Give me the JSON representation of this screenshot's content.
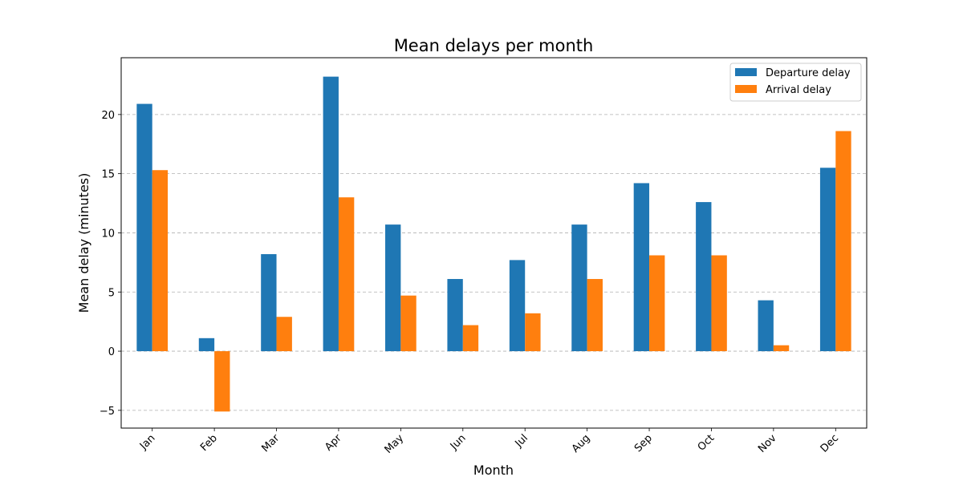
{
  "chart_data": {
    "type": "bar",
    "title": "Mean delays per month",
    "xlabel": "Month",
    "ylabel": "Mean delay (minutes)",
    "categories": [
      "Jan",
      "Feb",
      "Mar",
      "Apr",
      "May",
      "Jun",
      "Jul",
      "Aug",
      "Sep",
      "Oct",
      "Nov",
      "Dec"
    ],
    "series": [
      {
        "name": "Departure delay",
        "color": "#1f77b4",
        "values": [
          20.9,
          1.1,
          8.2,
          23.2,
          10.7,
          6.1,
          7.7,
          10.7,
          14.2,
          12.6,
          4.3,
          15.5
        ]
      },
      {
        "name": "Arrival delay",
        "color": "#ff7f0e",
        "values": [
          15.3,
          -5.1,
          2.9,
          13.0,
          4.7,
          2.2,
          3.2,
          6.1,
          8.1,
          8.1,
          0.5,
          18.6
        ]
      }
    ],
    "ylim": [
      -6.5,
      24.8
    ],
    "yticks": [
      -5,
      0,
      5,
      10,
      15,
      20
    ],
    "grid": "y-dashed",
    "legend_position": "top-right"
  }
}
